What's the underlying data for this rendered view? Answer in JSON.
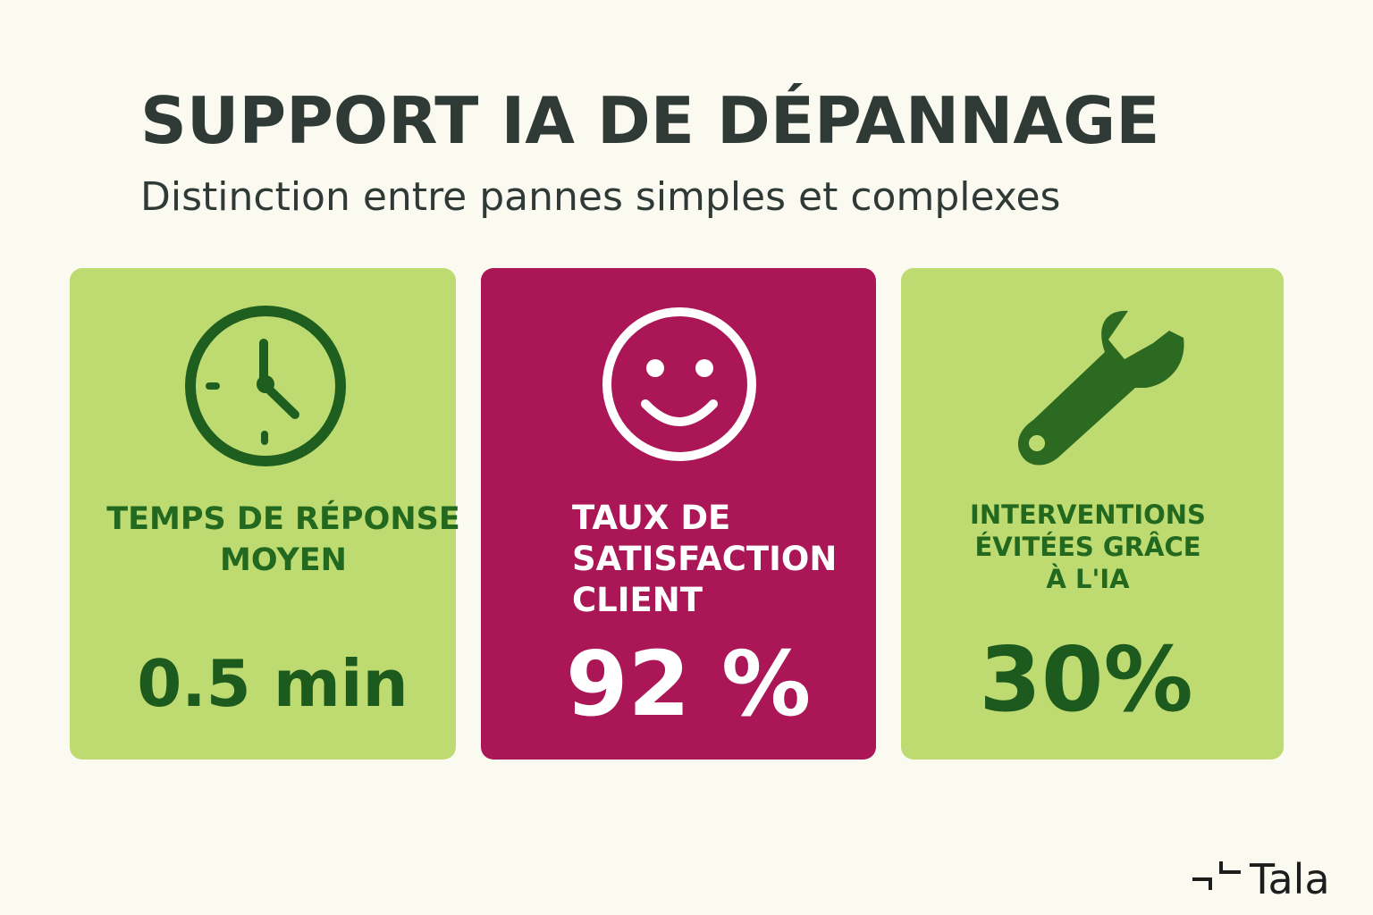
{
  "header": {
    "title": "SUPPORT IA DE DÉPANNAGE",
    "subtitle": "Distinction entre pannes simples et complexes"
  },
  "cards": [
    {
      "label_lines": [
        "TEMPS DE RÉPONSE",
        "MOYEN"
      ],
      "value": "0.5 min"
    },
    {
      "label_lines": [
        "TAUX DE",
        "SATISFACTION",
        "CLIENT"
      ],
      "value": "92 %"
    },
    {
      "label_lines": [
        "INTERVENTIONS",
        "ÉVITÉES GRÂCE",
        "À L'IA"
      ],
      "value": "30%"
    }
  ],
  "logo": {
    "text": "Tala"
  }
}
